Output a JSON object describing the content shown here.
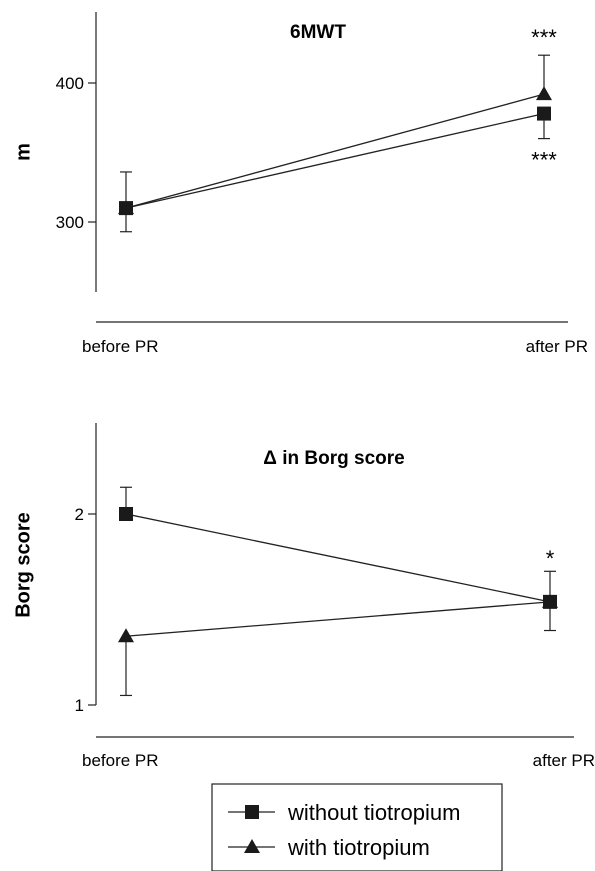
{
  "chart_data": [
    {
      "type": "line",
      "title": "6MWT",
      "xlabel": "",
      "ylabel": "m",
      "categories": [
        "before PR",
        "after PR"
      ],
      "yticks": [
        300,
        400
      ],
      "ylim": [
        250,
        450
      ],
      "series": [
        {
          "name": "without tiotropium",
          "marker": "square",
          "values": [
            310,
            378
          ],
          "error_upper": [
            336,
            null
          ],
          "error_lower": [
            null,
            360
          ]
        },
        {
          "name": "with tiotropium",
          "marker": "triangle",
          "values": [
            310,
            392
          ],
          "error_upper": [
            null,
            420
          ],
          "error_lower": [
            293,
            null
          ]
        }
      ],
      "annotations": [
        {
          "text": "***",
          "category": "after PR",
          "y": 433
        },
        {
          "text": "***",
          "category": "after PR",
          "y": 345
        }
      ],
      "grid": false
    },
    {
      "type": "line",
      "title": "Δ in Borg score",
      "xlabel": "",
      "ylabel": "Borg score",
      "categories": [
        "before PR",
        "after PR"
      ],
      "yticks": [
        1,
        2
      ],
      "ylim": [
        0.9,
        2.6
      ],
      "series": [
        {
          "name": "without tiotropium",
          "marker": "square",
          "values": [
            2.0,
            1.54
          ],
          "error_upper": [
            2.14,
            1.7
          ],
          "error_lower": [
            null,
            1.39
          ]
        },
        {
          "name": "with tiotropium",
          "marker": "triangle",
          "values": [
            1.36,
            1.54
          ],
          "error_upper": [
            null,
            null
          ],
          "error_lower": [
            1.05,
            null
          ]
        }
      ],
      "annotations": [
        {
          "text": "*",
          "category": "after PR",
          "y": 1.77
        }
      ],
      "grid": false
    }
  ],
  "legend": {
    "placement": "bottom-center",
    "items": [
      {
        "label": "without tiotropium",
        "marker": "square"
      },
      {
        "label": "with tiotropium",
        "marker": "triangle"
      }
    ]
  }
}
